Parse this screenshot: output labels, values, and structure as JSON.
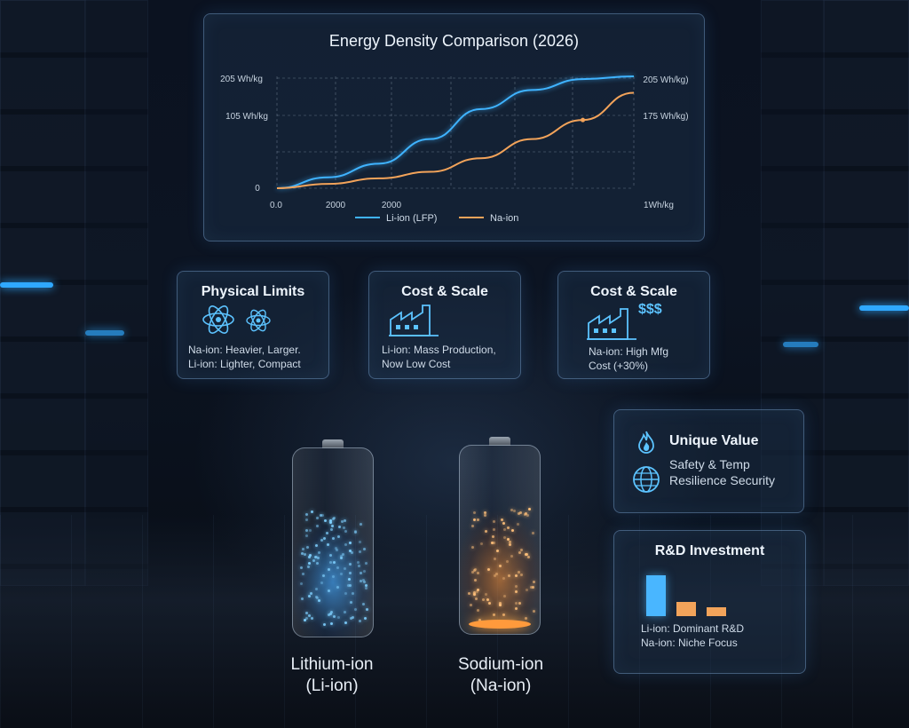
{
  "chart": {
    "title": "Energy Density Comparison (2026)",
    "y_ticks_left": [
      "205 Wh/kg",
      "105 Wh/kg",
      "0"
    ],
    "y_ticks_right": [
      "205 Wh/kg)",
      "175 Wh/kg)"
    ],
    "x_ticks": [
      "0.0",
      "2000",
      "2000",
      "1Wh/kg"
    ],
    "legend": [
      "Li-ion (LFP)",
      "Na-ion"
    ],
    "colors": {
      "li": "#3fb3ff",
      "na": "#f2a35a"
    }
  },
  "chart_data": {
    "type": "line",
    "title": "Energy Density Comparison (2026)",
    "series": [
      {
        "name": "Li-ion (LFP)",
        "values": [
          0,
          20,
          45,
          90,
          145,
          180,
          200,
          205
        ]
      },
      {
        "name": "Na-ion",
        "values": [
          0,
          8,
          18,
          30,
          55,
          90,
          125,
          175
        ]
      }
    ],
    "ylim": [
      0,
      205
    ],
    "grid": true,
    "legend_position": "bottom"
  },
  "cards": {
    "physical": {
      "title": "Physical Limits",
      "line1": "Na-ion: Heavier, Larger.",
      "line2": "Li-ion: Lighter, Compact"
    },
    "cost1": {
      "title": "Cost & Scale",
      "line1": "Li-ion: Mass Production,",
      "line2": "Now Low Cost"
    },
    "cost2": {
      "title": "Cost & Scale",
      "money": "$$$",
      "line1": "Na-ion: High Mfg",
      "line2": "Cost (+30%)"
    },
    "unique": {
      "title": "Unique Value",
      "line1": "Safety & Temp",
      "line2": "Resilience Security"
    },
    "rd": {
      "title": "R&D Investment",
      "line1": "Li-ion: Dominant R&D",
      "line2": "Na-ion: Niche Focus"
    }
  },
  "batteries": {
    "li": {
      "line1": "Lithium-ion",
      "line2": "(Li-ion)"
    },
    "na": {
      "line1": "Sodium-ion",
      "line2": "(Na-ion)"
    }
  }
}
